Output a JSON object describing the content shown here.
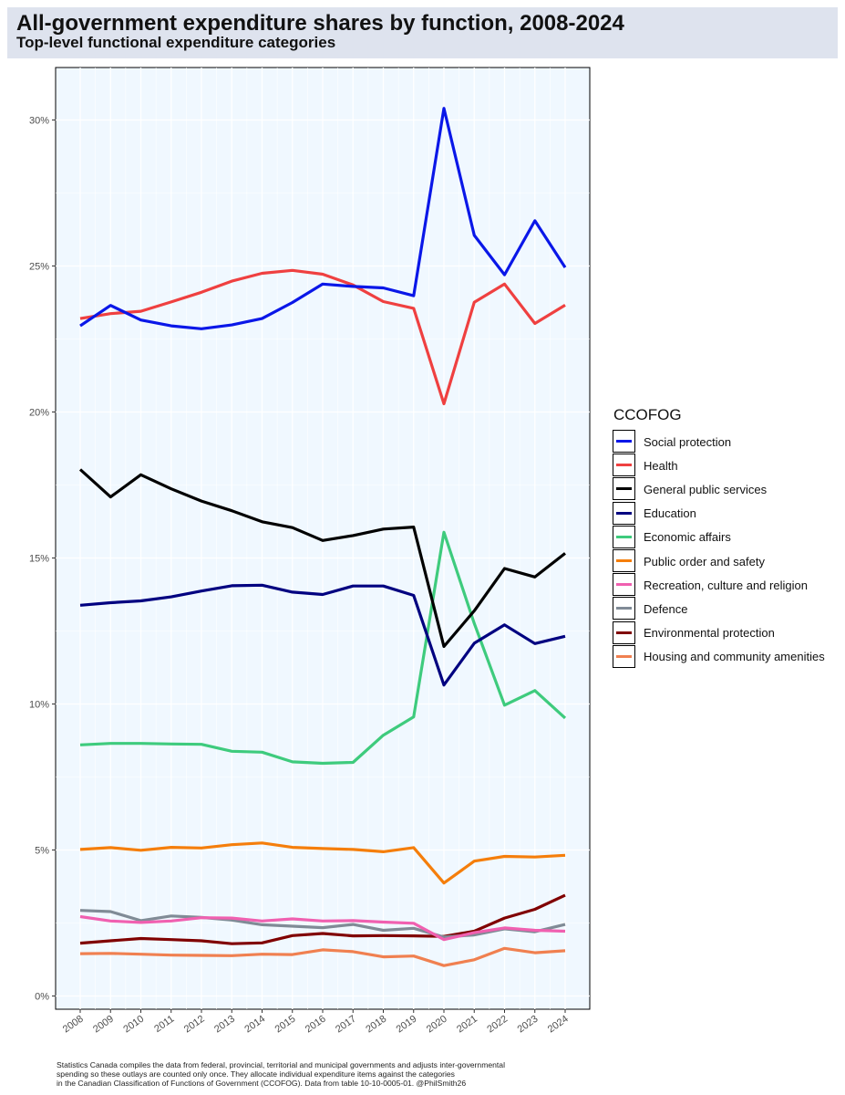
{
  "header": {
    "title": "All-government expenditure shares by function, 2008-2024",
    "subtitle": "Top-level functional expenditure categories"
  },
  "legend": {
    "title": "CCOFOG"
  },
  "footnote": {
    "lines": [
      "Statistics Canada compiles the data from federal, provincial, territorial and municipal governments and adjusts inter-governmental",
      "spending so these outlays are counted only once. They allocate individual expenditure items against the categories",
      "in the Canadian Classification of Functions of Government (CCOFOG). Data from table 10-10-0005-01. @PhilSmith26"
    ]
  },
  "chart_data": {
    "type": "line",
    "title": "All-government expenditure shares by function, 2008-2024",
    "subtitle": "Top-level functional expenditure categories",
    "xlabel": "",
    "ylabel": "",
    "x": [
      "2008",
      "2009",
      "2010",
      "2011",
      "2012",
      "2013",
      "2014",
      "2015",
      "2016",
      "2017",
      "2018",
      "2019",
      "2020",
      "2021",
      "2022",
      "2023",
      "2024"
    ],
    "ylim": [
      0,
      31.5
    ],
    "yticks": [
      0,
      5,
      10,
      15,
      20,
      25,
      30
    ],
    "ytick_labels": [
      "0%",
      "5%",
      "10%",
      "15%",
      "20%",
      "25%",
      "30%"
    ],
    "grid": true,
    "legend_position": "right",
    "series": [
      {
        "name": "Social protection",
        "color": "#0a17e8",
        "values": [
          22.95,
          23.65,
          23.15,
          22.95,
          22.85,
          22.98,
          23.2,
          23.75,
          24.38,
          24.3,
          24.25,
          23.98,
          30.4,
          26.05,
          24.7,
          26.55,
          24.95
        ]
      },
      {
        "name": "Health",
        "color": "#ef4040",
        "values": [
          23.2,
          23.37,
          23.45,
          23.77,
          24.1,
          24.48,
          24.75,
          24.85,
          24.72,
          24.35,
          23.78,
          23.55,
          20.28,
          23.76,
          24.38,
          23.03,
          23.66
        ]
      },
      {
        "name": "General public services",
        "color": "#000000",
        "values": [
          18.03,
          17.09,
          17.85,
          17.37,
          16.95,
          16.62,
          16.24,
          16.04,
          15.6,
          15.77,
          15.99,
          16.06,
          11.97,
          13.19,
          14.64,
          14.35,
          15.16
        ]
      },
      {
        "name": "Education",
        "color": "#000080",
        "values": [
          13.38,
          13.47,
          13.53,
          13.67,
          13.87,
          14.05,
          14.07,
          13.83,
          13.75,
          14.04,
          14.04,
          13.72,
          10.65,
          12.08,
          12.71,
          12.07,
          12.32
        ]
      },
      {
        "name": "Economic affairs",
        "color": "#3ecb7d",
        "values": [
          8.6,
          8.65,
          8.65,
          8.63,
          8.62,
          8.38,
          8.35,
          8.02,
          7.97,
          8.0,
          8.93,
          9.56,
          15.88,
          12.76,
          9.96,
          10.46,
          9.52
        ]
      },
      {
        "name": "Public order and safety",
        "color": "#f57e0b",
        "values": [
          5.02,
          5.08,
          4.99,
          5.09,
          5.07,
          5.18,
          5.24,
          5.09,
          5.05,
          5.02,
          4.94,
          5.08,
          3.87,
          4.62,
          4.78,
          4.76,
          4.82
        ]
      },
      {
        "name": "Recreation, culture and religion",
        "color": "#f060b0",
        "values": [
          2.72,
          2.57,
          2.52,
          2.57,
          2.68,
          2.67,
          2.57,
          2.64,
          2.57,
          2.58,
          2.53,
          2.49,
          1.93,
          2.17,
          2.33,
          2.25,
          2.22
        ]
      },
      {
        "name": "Defence",
        "color": "#808b96",
        "values": [
          2.93,
          2.89,
          2.58,
          2.74,
          2.69,
          2.6,
          2.44,
          2.39,
          2.34,
          2.45,
          2.25,
          2.32,
          2.02,
          2.09,
          2.3,
          2.2,
          2.45
        ]
      },
      {
        "name": "Environmental protection",
        "color": "#800000",
        "values": [
          1.81,
          1.89,
          1.97,
          1.93,
          1.89,
          1.79,
          1.82,
          2.07,
          2.14,
          2.06,
          2.07,
          2.06,
          2.04,
          2.22,
          2.67,
          2.97,
          3.45
        ]
      },
      {
        "name": "Housing and community amenities",
        "color": "#f08050",
        "values": [
          1.45,
          1.46,
          1.43,
          1.4,
          1.39,
          1.38,
          1.43,
          1.42,
          1.58,
          1.52,
          1.34,
          1.37,
          1.04,
          1.24,
          1.63,
          1.48,
          1.55
        ]
      }
    ]
  }
}
